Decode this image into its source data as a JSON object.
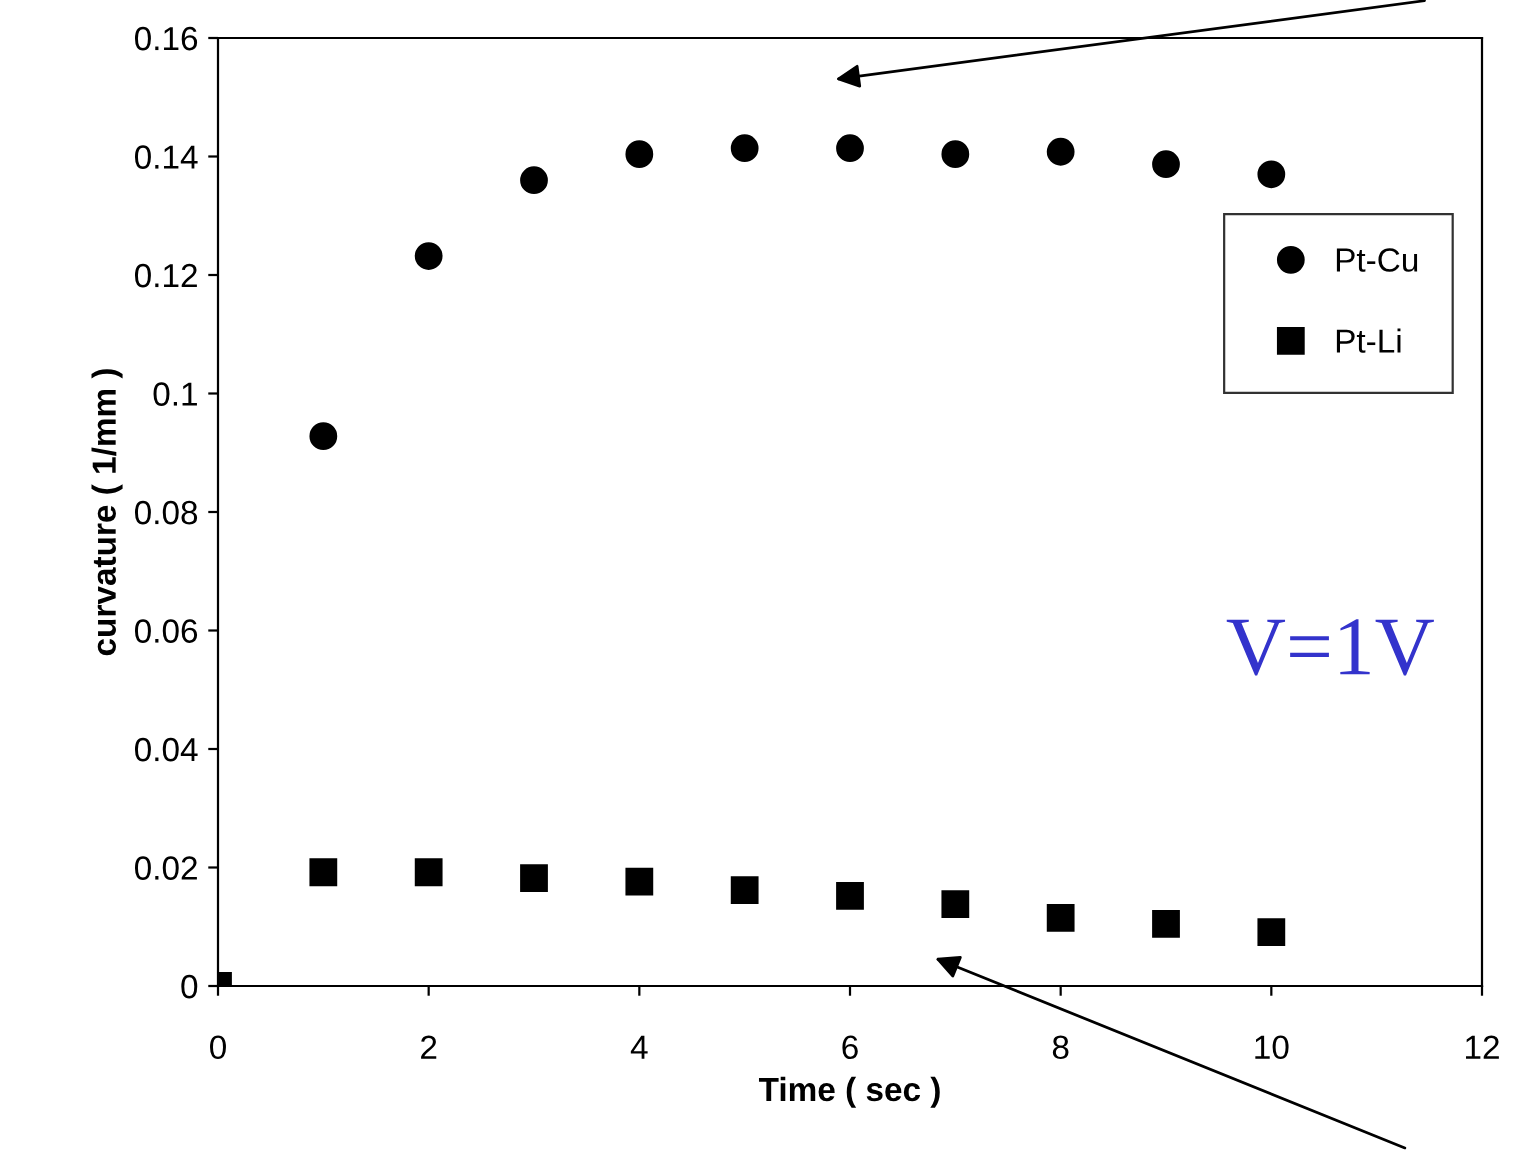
{
  "chart_data": {
    "type": "scatter",
    "xlabel": "Time ( sec )",
    "ylabel": "curvature ( 1/mm )",
    "xlim": [
      0,
      12
    ],
    "xticks": [
      0,
      2,
      4,
      6,
      8,
      10,
      12
    ],
    "ylim": [
      0,
      0.16
    ],
    "yticks": [
      0,
      0.02,
      0.04,
      0.06,
      0.08,
      0.1,
      0.12,
      0.14,
      0.16
    ],
    "grid": false,
    "legend": "right",
    "annotations": [
      "V=1V"
    ],
    "series": [
      {
        "name": "Pt-Cu",
        "color": "#000000",
        "marker": "circle",
        "x": [
          1,
          2,
          3,
          4,
          5,
          6,
          7,
          8,
          9,
          10
        ],
        "values": [
          0.0928,
          0.1232,
          0.136,
          0.1404,
          0.1414,
          0.1414,
          0.1404,
          0.1408,
          0.1387,
          0.137
        ]
      },
      {
        "name": "Pt-Li",
        "color": "#000000",
        "marker": "square",
        "x": [
          0,
          1,
          2,
          3,
          4,
          5,
          6,
          7,
          8,
          9,
          10
        ],
        "values": [
          0,
          0.0192,
          0.0192,
          0.0182,
          0.0176,
          0.0162,
          0.0152,
          0.0138,
          0.0115,
          0.0105,
          0.0091
        ]
      }
    ]
  }
}
